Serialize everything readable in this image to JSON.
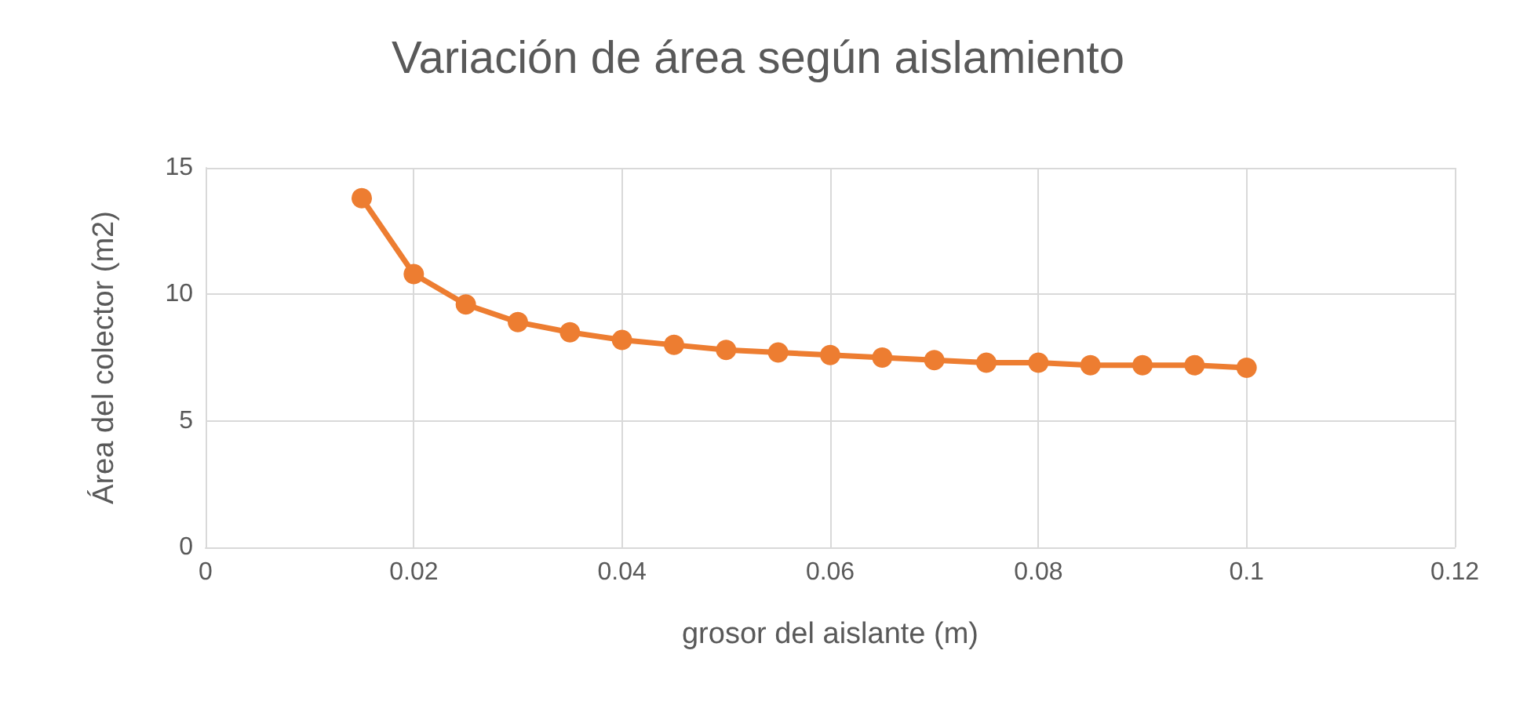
{
  "chart_data": {
    "type": "line",
    "title": "Variación de área según aislamiento",
    "xlabel": "grosor del aislante (m)",
    "ylabel": "Área del colector (m2)",
    "x": [
      0.015,
      0.02,
      0.025,
      0.03,
      0.035,
      0.04,
      0.045,
      0.05,
      0.055,
      0.06,
      0.065,
      0.07,
      0.075,
      0.08,
      0.085,
      0.09,
      0.095,
      0.1
    ],
    "series": [
      {
        "color": "#ed7d31",
        "values": [
          13.8,
          10.8,
          9.6,
          8.9,
          8.5,
          8.2,
          8.0,
          7.8,
          7.7,
          7.6,
          7.5,
          7.4,
          7.3,
          7.3,
          7.2,
          7.2,
          7.2,
          7.1
        ]
      }
    ],
    "xlim": [
      0,
      0.12
    ],
    "xticks": [
      0,
      0.02,
      0.04,
      0.06,
      0.08,
      0.1,
      0.12
    ],
    "ylim": [
      0,
      15
    ],
    "yticks": [
      0,
      5,
      10,
      15
    ],
    "grid": true,
    "marker": "circle",
    "line_style": "solid"
  }
}
